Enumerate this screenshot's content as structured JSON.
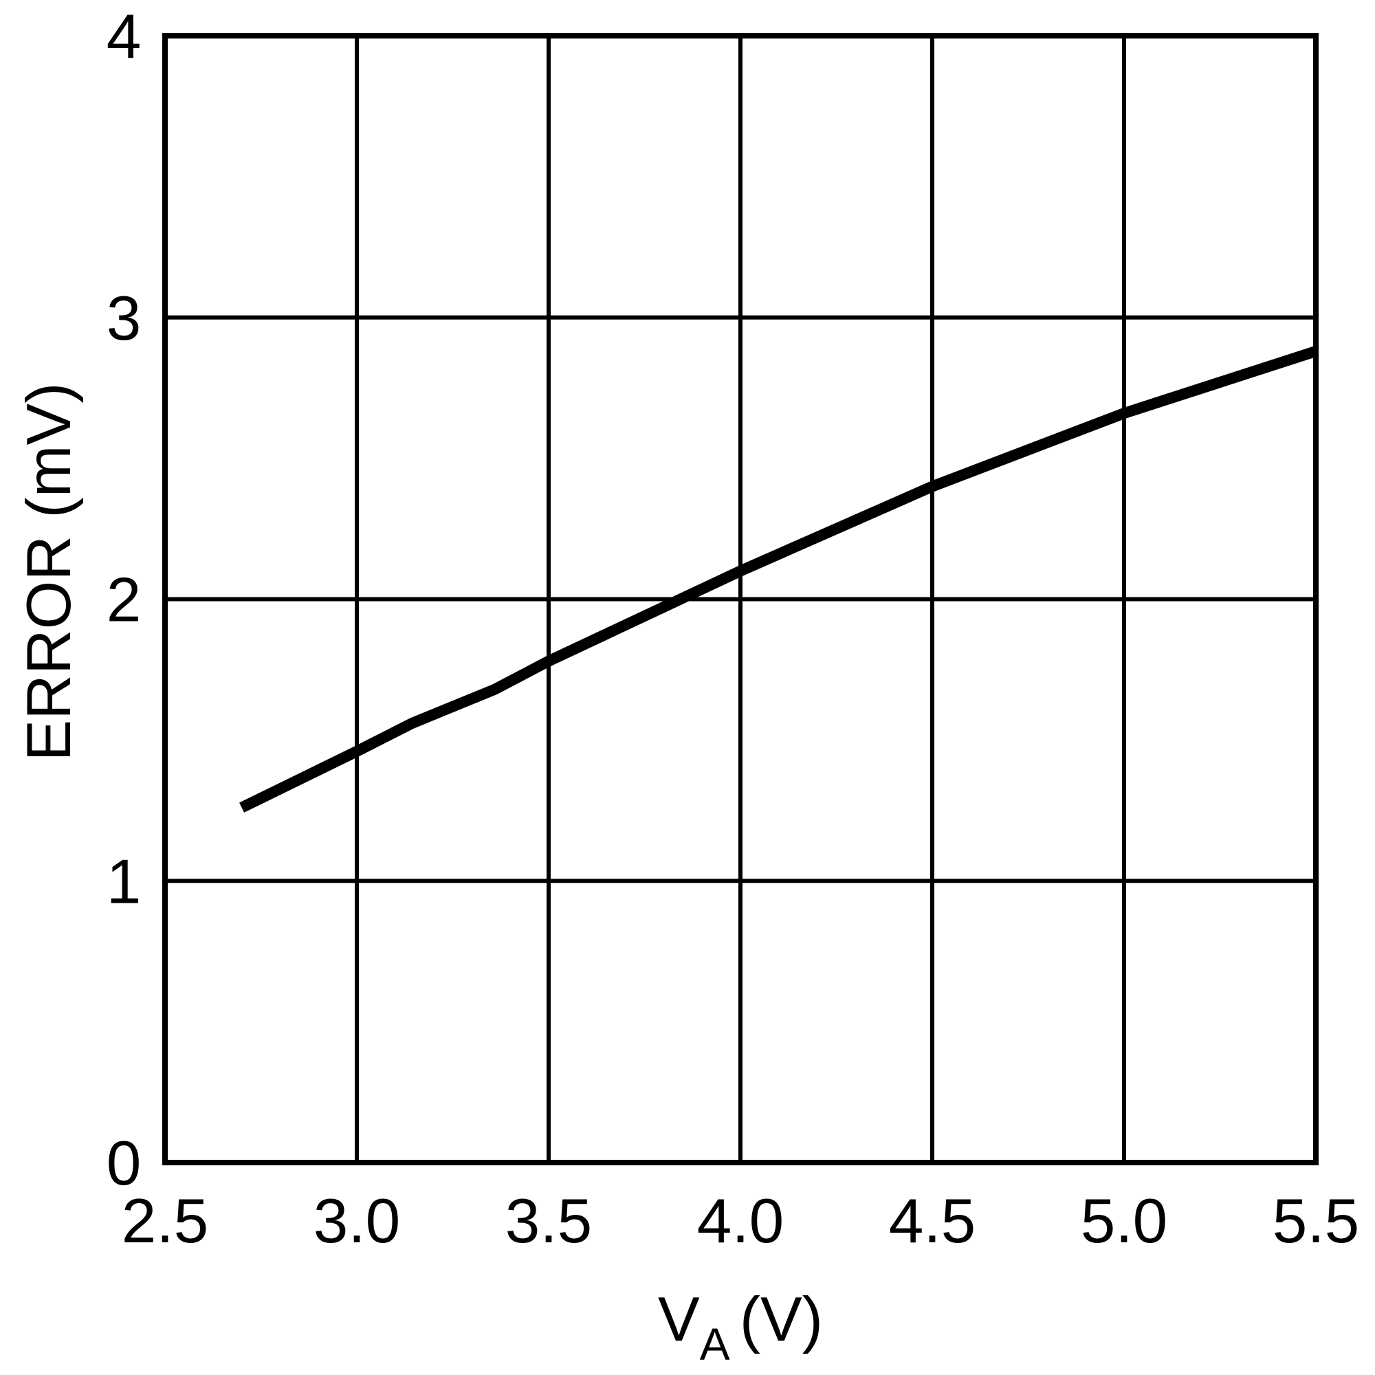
{
  "chart_data": {
    "type": "line",
    "title": "",
    "xlabel": "V_A (V)",
    "xlabel_main": "V",
    "xlabel_subscript": "A",
    "xlabel_unit": "(V)",
    "ylabel": "ERROR (mV)",
    "xlim": [
      2.5,
      5.5
    ],
    "ylim": [
      0,
      4
    ],
    "x_ticks": [
      2.5,
      3.0,
      3.5,
      4.0,
      4.5,
      5.0,
      5.5
    ],
    "x_tick_labels": [
      "2.5",
      "3.0",
      "3.5",
      "4.0",
      "4.5",
      "5.0",
      "5.5"
    ],
    "y_ticks": [
      0,
      1,
      2,
      3,
      4
    ],
    "y_tick_labels": [
      "0",
      "1",
      "2",
      "3",
      "4"
    ],
    "grid": true,
    "legend": null,
    "series": [
      {
        "name": "ERROR",
        "color": "#000000",
        "x": [
          2.7,
          3.0,
          3.145,
          3.36,
          3.5,
          4.0,
          4.5,
          5.0,
          5.5
        ],
        "y": [
          1.26,
          1.46,
          1.56,
          1.68,
          1.78,
          2.1,
          2.4,
          2.66,
          2.88
        ]
      }
    ]
  },
  "colors": {
    "background": "#ffffff",
    "grid": "#000000",
    "line": "#000000"
  }
}
